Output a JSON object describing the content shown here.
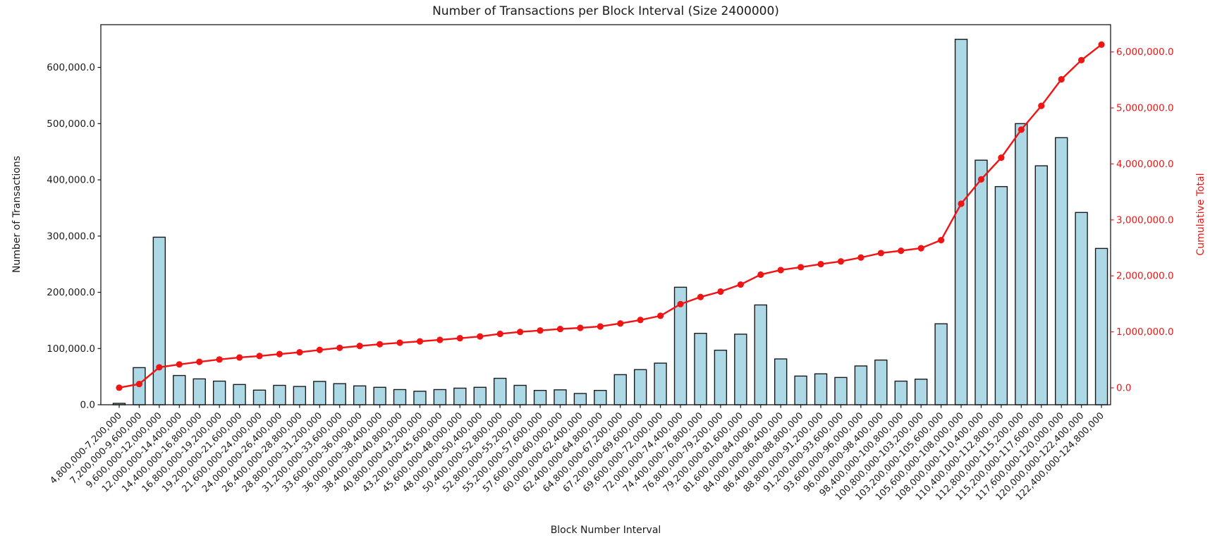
{
  "chart_data": {
    "type": "bar",
    "title": "Number of Transactions per Block Interval (Size 2400000)",
    "xlabel": "Block Number Interval",
    "ylabel_left": "Number of Transactions",
    "ylabel_right": "Cumulative Total",
    "grid": false,
    "legend": "none",
    "categories": [
      "4,800,000-7,200,000",
      "7,200,000-9,600,000",
      "9,600,000-12,000,000",
      "12,000,000-14,400,000",
      "14,400,000-16,800,000",
      "16,800,000-19,200,000",
      "19,200,000-21,600,000",
      "21,600,000-24,000,000",
      "24,000,000-26,400,000",
      "26,400,000-28,800,000",
      "28,800,000-31,200,000",
      "31,200,000-33,600,000",
      "33,600,000-36,000,000",
      "36,000,000-38,400,000",
      "38,400,000-40,800,000",
      "40,800,000-43,200,000",
      "43,200,000-45,600,000",
      "45,600,000-48,000,000",
      "48,000,000-50,400,000",
      "50,400,000-52,800,000",
      "52,800,000-55,200,000",
      "55,200,000-57,600,000",
      "57,600,000-60,000,000",
      "60,000,000-62,400,000",
      "62,400,000-64,800,000",
      "64,800,000-67,200,000",
      "67,200,000-69,600,000",
      "69,600,000-72,000,000",
      "72,000,000-74,400,000",
      "74,400,000-76,800,000",
      "76,800,000-79,200,000",
      "79,200,000-81,600,000",
      "81,600,000-84,000,000",
      "84,000,000-86,400,000",
      "86,400,000-88,800,000",
      "88,800,000-91,200,000",
      "91,200,000-93,600,000",
      "93,600,000-96,000,000",
      "96,000,000-98,400,000",
      "98,400,000-100,800,000",
      "100,800,000-103,200,000",
      "103,200,000-105,600,000",
      "105,600,000-108,000,000",
      "108,000,000-110,400,000",
      "110,400,000-112,800,000",
      "112,800,000-115,200,000",
      "115,200,000-117,600,000",
      "117,600,000-120,000,000",
      "120,000,000-122,400,000",
      "122,400,000-124,800,000"
    ],
    "series": [
      {
        "name": "Number of Transactions",
        "type": "bar",
        "axis": "left",
        "fill_color": "#add8e6",
        "edge_color": "#1a1a1a",
        "values": [
          2500,
          66000,
          298000,
          52000,
          46000,
          42000,
          36000,
          26000,
          34500,
          32500,
          41500,
          37500,
          33500,
          31000,
          27000,
          24000,
          27000,
          29500,
          31000,
          47000,
          34500,
          25500,
          26500,
          20000,
          25500,
          53500,
          62500,
          74000,
          209000,
          127000,
          97000,
          125500,
          177500,
          81500,
          51000,
          55000,
          48500,
          69000,
          79500,
          42000,
          45500,
          144000,
          650000,
          435000,
          388000,
          500000,
          425000,
          475000,
          342000,
          278000
        ]
      },
      {
        "name": "Cumulative Total",
        "type": "line",
        "axis": "right",
        "color": "#f01414",
        "marker": "circle",
        "values": [
          2500,
          68500,
          366500,
          418500,
          464500,
          506500,
          542500,
          568500,
          603000,
          635500,
          677000,
          714500,
          748000,
          779000,
          806000,
          830000,
          857000,
          886500,
          917500,
          964500,
          999000,
          1024500,
          1051000,
          1071000,
          1096500,
          1150000,
          1212500,
          1286500,
          1495500,
          1622500,
          1719500,
          1845000,
          2022500,
          2104000,
          2155000,
          2210000,
          2258500,
          2327500,
          2407000,
          2449000,
          2494500,
          2638500,
          3288500,
          3723500,
          4111500,
          4611500,
          5036500,
          5511500,
          5853500,
          6131500
        ]
      }
    ],
    "left_axis": {
      "range": [
        0,
        676000
      ],
      "ticks": [
        0,
        100000,
        200000,
        300000,
        400000,
        500000,
        600000
      ],
      "tick_labels": [
        "0.0",
        "100,000.0",
        "200,000.0",
        "300,000.0",
        "400,000.0",
        "500,000.0",
        "600,000.0"
      ],
      "color": "#1a1a1a"
    },
    "right_axis": {
      "range": [
        -302000,
        6487000
      ],
      "ticks": [
        0,
        1000000,
        2000000,
        3000000,
        4000000,
        5000000,
        6000000
      ],
      "tick_labels": [
        "0.0",
        "1,000,000.0",
        "2,000,000.0",
        "3,000,000.0",
        "4,000,000.0",
        "5,000,000.0",
        "6,000,000.0"
      ],
      "color": "#f01414"
    }
  }
}
